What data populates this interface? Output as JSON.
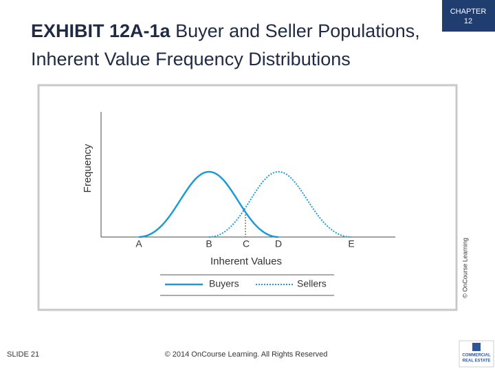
{
  "header": {
    "exhibit": "EXHIBIT 12A-1a",
    "title_line1": "Buyer and Seller Populations,",
    "title_line2": "Inherent Value Frequency Distributions"
  },
  "badge": {
    "line1": "CHAPTER",
    "line2": "12"
  },
  "figure": {
    "y_label": "Frequency",
    "x_label": "Inherent Values",
    "x_points": [
      "A",
      "B",
      "C",
      "D",
      "E"
    ],
    "legend": [
      {
        "name": "Buyers"
      },
      {
        "name": "Sellers"
      }
    ],
    "credit": "© OnCourse Learning"
  },
  "footer": {
    "slide": "SLIDE 21",
    "copyright": "© 2014 OnCourse Learning. All Rights Reserved",
    "logo_line1": "COMMERCIAL",
    "logo_line2": "REAL ESTATE"
  }
}
